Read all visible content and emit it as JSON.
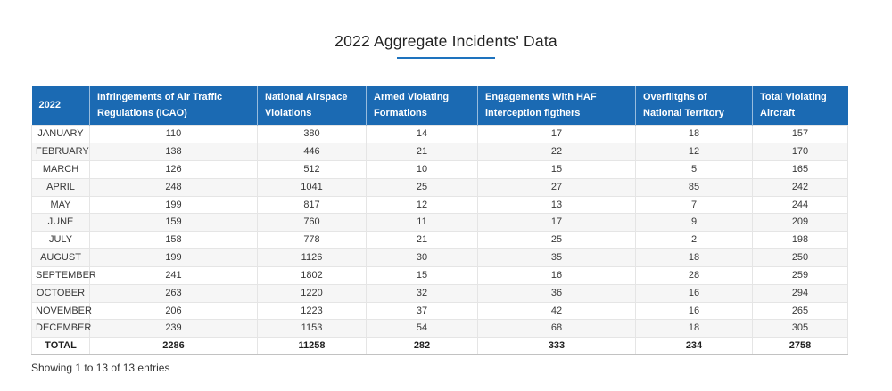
{
  "page": {
    "title": "2022 Aggregate Incidents' Data",
    "info_text": "Showing 1 to 13 of 13 entries"
  },
  "colors": {
    "header_bg": "#1b6ab3",
    "header_text": "#ffffff",
    "title_underline": "#1e73be",
    "stripe_bg": "#f6f6f6",
    "grid_line": "#e5e5e5"
  },
  "table": {
    "header_lines": [
      [
        "2022"
      ],
      [
        "Infringements of Air Traffic",
        "Regulations (ICAO)"
      ],
      [
        "National Airspace",
        "Violations"
      ],
      [
        "Armed Violating",
        "Formations"
      ],
      [
        "Engagements With HAF",
        "interception figthers"
      ],
      [
        "Overflitghs of",
        "National Territory"
      ],
      [
        "Total Violating",
        "Aircraft"
      ]
    ],
    "rows": [
      [
        "JANUARY",
        "110",
        "380",
        "14",
        "17",
        "18",
        "157"
      ],
      [
        "FEBRUARY",
        "138",
        "446",
        "21",
        "22",
        "12",
        "170"
      ],
      [
        "MARCH",
        "126",
        "512",
        "10",
        "15",
        "5",
        "165"
      ],
      [
        "APRIL",
        "248",
        "1041",
        "25",
        "27",
        "85",
        "242"
      ],
      [
        "MAY",
        "199",
        "817",
        "12",
        "13",
        "7",
        "244"
      ],
      [
        "JUNE",
        "159",
        "760",
        "11",
        "17",
        "9",
        "209"
      ],
      [
        "JULY",
        "158",
        "778",
        "21",
        "25",
        "2",
        "198"
      ],
      [
        "AUGUST",
        "199",
        "1126",
        "30",
        "35",
        "18",
        "250"
      ],
      [
        "SEPTEMBER",
        "241",
        "1802",
        "15",
        "16",
        "28",
        "259"
      ],
      [
        "OCTOBER",
        "263",
        "1220",
        "32",
        "36",
        "16",
        "294"
      ],
      [
        "NOVEMBER",
        "206",
        "1223",
        "37",
        "42",
        "16",
        "265"
      ],
      [
        "DECEMBER",
        "239",
        "1153",
        "54",
        "68",
        "18",
        "305"
      ]
    ],
    "total_row": [
      "TOTAL",
      "2286",
      "11258",
      "282",
      "333",
      "234",
      "2758"
    ]
  },
  "chart_data": {
    "type": "table",
    "title": "2022 Aggregate Incidents' Data",
    "columns": [
      "2022",
      "Infringements of Air Traffic Regulations (ICAO)",
      "National Airspace Violations",
      "Armed Violating Formations",
      "Engagements With HAF interception figthers",
      "Overflitghs of National Territory",
      "Total Violating Aircraft"
    ],
    "rows": [
      [
        "JANUARY",
        110,
        380,
        14,
        17,
        18,
        157
      ],
      [
        "FEBRUARY",
        138,
        446,
        21,
        22,
        12,
        170
      ],
      [
        "MARCH",
        126,
        512,
        10,
        15,
        5,
        165
      ],
      [
        "APRIL",
        248,
        1041,
        25,
        27,
        85,
        242
      ],
      [
        "MAY",
        199,
        817,
        12,
        13,
        7,
        244
      ],
      [
        "JUNE",
        159,
        760,
        11,
        17,
        9,
        209
      ],
      [
        "JULY",
        158,
        778,
        21,
        25,
        2,
        198
      ],
      [
        "AUGUST",
        199,
        1126,
        30,
        35,
        18,
        250
      ],
      [
        "SEPTEMBER",
        241,
        1802,
        15,
        16,
        28,
        259
      ],
      [
        "OCTOBER",
        263,
        1220,
        32,
        36,
        16,
        294
      ],
      [
        "NOVEMBER",
        206,
        1223,
        37,
        42,
        16,
        265
      ],
      [
        "DECEMBER",
        239,
        1153,
        54,
        68,
        18,
        305
      ],
      [
        "TOTAL",
        2286,
        11258,
        282,
        333,
        234,
        2758
      ]
    ]
  }
}
